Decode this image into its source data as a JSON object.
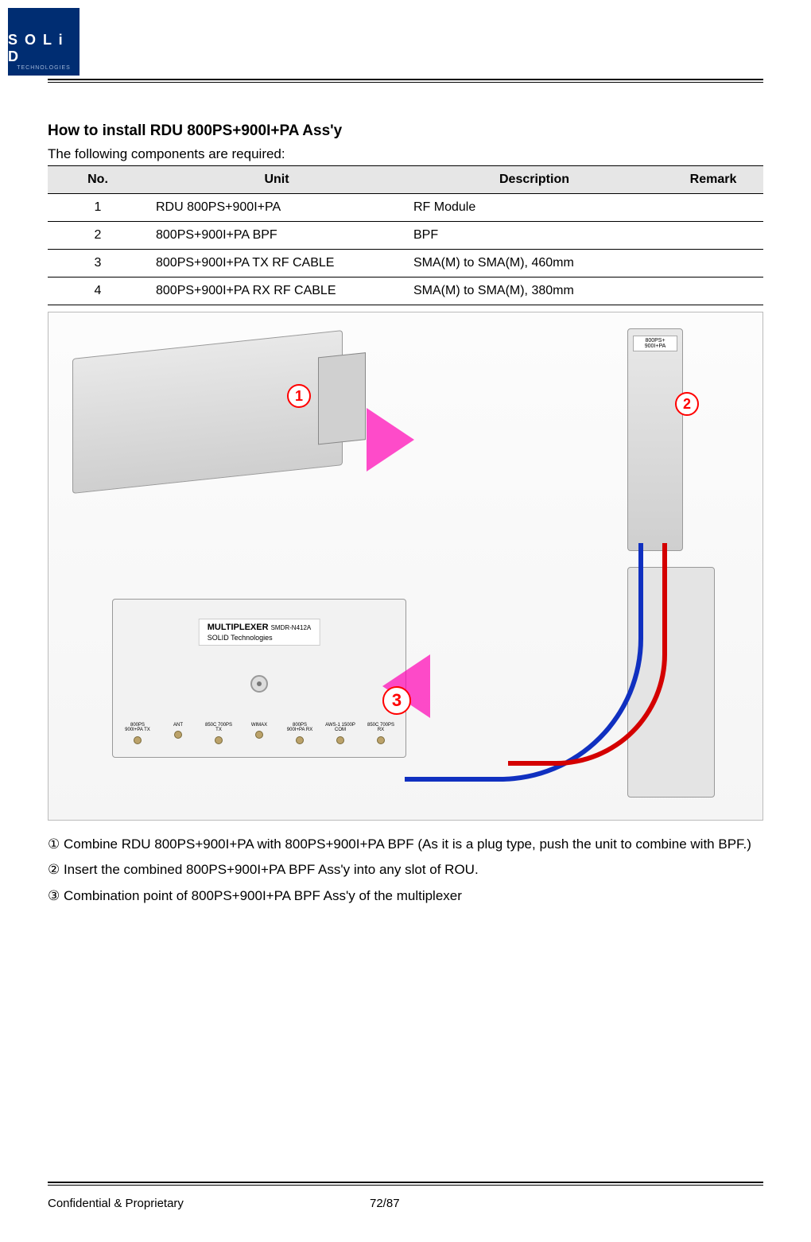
{
  "logo": {
    "brand": "S O L i D",
    "sub": "TECHNOLOGIES"
  },
  "heading": "How to install RDU 800PS+900I+PA Ass'y",
  "intro": "The following components are required:",
  "table": {
    "headers": {
      "no": "No.",
      "unit": "Unit",
      "desc": "Description",
      "remark": "Remark"
    },
    "rows": [
      {
        "no": "1",
        "unit": "RDU 800PS+900I+PA",
        "desc": "RF Module",
        "remark": ""
      },
      {
        "no": "2",
        "unit": "800PS+900I+PA BPF",
        "desc": "BPF",
        "remark": ""
      },
      {
        "no": "3",
        "unit": "800PS+900I+PA TX RF CABLE",
        "desc": "SMA(M) to SMA(M), 460mm",
        "remark": ""
      },
      {
        "no": "4",
        "unit": "800PS+900I+PA RX RF CABLE",
        "desc": "SMA(M) to SMA(M), 380mm",
        "remark": ""
      }
    ]
  },
  "diagram": {
    "callouts": {
      "one": "1",
      "two": "2",
      "three": "3"
    },
    "bpf_label": "800PS+\n900I+PA",
    "multiplexer": {
      "title": "MULTIPLEXER",
      "model": "SMDR-N412A",
      "sub": "SOLID Technologies",
      "ports": [
        "800PS\n900I+PA\nTX",
        "ANT",
        "850C\n700PS\nTX",
        "WIMAX",
        "800PS\n900I+PA\nRX",
        "AWS-1\n1500P\nCOM",
        "850C\n700PS\nRX"
      ]
    },
    "cable_colors": {
      "tx": "#d40000",
      "rx": "#1030c0"
    }
  },
  "steps": {
    "s1": "① Combine RDU 800PS+900I+PA with 800PS+900I+PA BPF (As it is a plug type, push the unit to combine with BPF.)",
    "s2": "② Insert the combined 800PS+900I+PA BPF Ass'y into any slot of ROU.",
    "s3": "③ Combination point of 800PS+900I+PA BPF Ass'y of the multiplexer"
  },
  "footer": {
    "left": "Confidential & Proprietary",
    "center": "72/87"
  }
}
